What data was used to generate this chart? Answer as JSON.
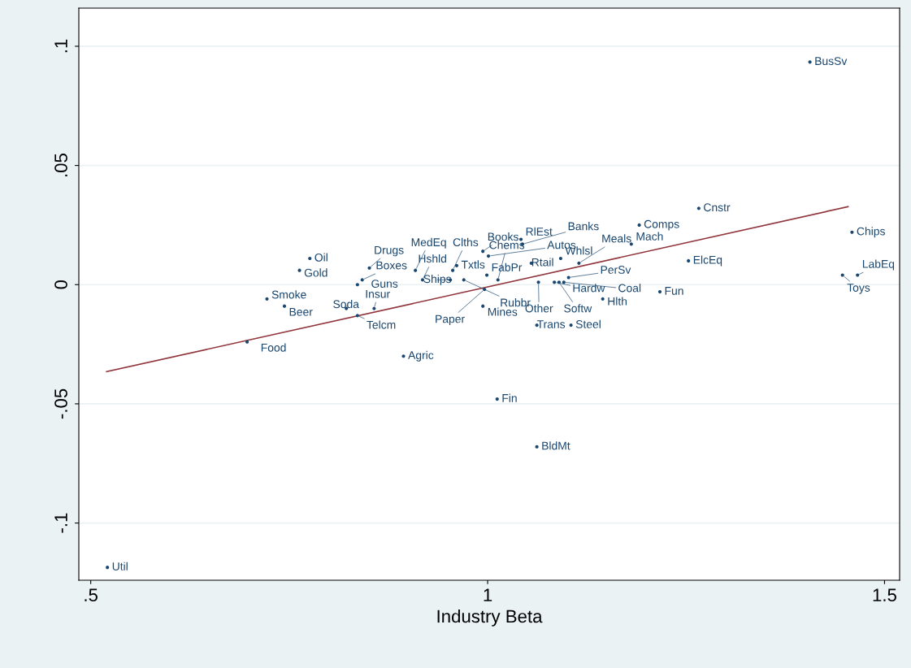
{
  "chart_data": {
    "type": "scatter",
    "xlabel": "Industry Beta",
    "xlim": [
      0.485,
      1.519
    ],
    "ylim": [
      -0.124,
      0.116
    ],
    "xticks": [
      {
        "value": 0.5,
        "label": ".5"
      },
      1,
      {
        "value": 1.5,
        "label": "1.5"
      }
    ],
    "yticks": [
      {
        "value": -0.1,
        "label": "-.1"
      },
      {
        "value": -0.05,
        "label": "-.05"
      },
      0,
      {
        "value": 0.05,
        "label": ".05"
      },
      {
        "value": 0.1,
        "label": ".1"
      }
    ],
    "grid": "y",
    "series": [
      {
        "color": "#1a476f",
        "marker": "circle",
        "x": [
          1.406,
          1.266,
          1.191,
          1.181,
          1.253,
          1.459,
          1.447,
          1.466,
          1.217,
          1.145,
          1.105,
          1.062,
          1.062,
          1.012,
          0.994,
          0.996,
          0.894,
          0.697,
          0.722,
          0.744,
          0.822,
          0.857,
          0.836,
          0.776,
          0.763,
          0.836,
          0.842,
          0.851,
          0.909,
          0.918,
          0.961,
          0.956,
          0.953,
          0.97,
          0.999,
          1.013,
          0.994,
          1.001,
          1.042,
          1.044,
          1.055,
          1.092,
          1.115,
          1.102,
          1.064,
          1.084,
          1.09,
          1.096,
          0.521
        ],
        "values": [
          0.0934,
          0.032,
          0.025,
          0.017,
          0.01,
          0.022,
          0.004,
          0.004,
          -0.003,
          -0.006,
          -0.017,
          -0.017,
          -0.068,
          -0.048,
          -0.009,
          -0.002,
          -0.03,
          -0.024,
          -0.006,
          -0.009,
          -0.01,
          -0.01,
          -0.013,
          0.011,
          0.006,
          0.0,
          0.002,
          0.007,
          0.006,
          0.002,
          0.008,
          0.006,
          0.002,
          0.002,
          0.004,
          0.002,
          0.014,
          0.012,
          0.019,
          0.017,
          0.009,
          0.011,
          0.009,
          0.003,
          0.001,
          0.001,
          0.001,
          0.001,
          -0.1186
        ]
      },
      {
        "type": "line",
        "marker": "none",
        "color": "#90353b",
        "line_style": "solid",
        "x": [
          0.52,
          1.454
        ],
        "values": [
          -0.0365,
          0.0327
        ]
      }
    ],
    "annotations": [
      {
        "text": "BusSv",
        "x": 1.406,
        "y": 0.0934
      },
      {
        "text": "Cnstr",
        "x": 1.266,
        "y": 0.032
      },
      {
        "text": "Comps",
        "x": 1.191,
        "y": 0.025
      },
      {
        "text": "Mach",
        "x": 1.181,
        "y": 0.017
      },
      {
        "text": "ElcEq",
        "x": 1.253,
        "y": 0.01
      },
      {
        "text": "Chips",
        "x": 1.459,
        "y": 0.022
      },
      {
        "text": "Toys",
        "x": 1.447,
        "y": 0.004
      },
      {
        "text": "LabEq",
        "x": 1.466,
        "y": 0.004
      },
      {
        "text": "Fun",
        "x": 1.217,
        "y": -0.003
      },
      {
        "text": "Hlth",
        "x": 1.145,
        "y": -0.006
      },
      {
        "text": "Steel",
        "x": 1.105,
        "y": -0.017
      },
      {
        "text": "Trans",
        "x": 1.062,
        "y": -0.017
      },
      {
        "text": "BldMt",
        "x": 1.062,
        "y": -0.068
      },
      {
        "text": "Fin",
        "x": 1.012,
        "y": -0.048
      },
      {
        "text": "Mines",
        "x": 0.994,
        "y": -0.009
      },
      {
        "text": "Paper",
        "x": 0.996,
        "y": -0.002
      },
      {
        "text": "Agric",
        "x": 0.894,
        "y": -0.03
      },
      {
        "text": "Food",
        "x": 0.697,
        "y": -0.024
      },
      {
        "text": "Smoke",
        "x": 0.722,
        "y": -0.006
      },
      {
        "text": "Beer",
        "x": 0.744,
        "y": -0.009
      },
      {
        "text": "Soda",
        "x": 0.822,
        "y": -0.01
      },
      {
        "text": "Insur",
        "x": 0.857,
        "y": -0.01
      },
      {
        "text": "Telcm",
        "x": 0.836,
        "y": -0.013
      },
      {
        "text": "Oil",
        "x": 0.776,
        "y": 0.011
      },
      {
        "text": "Gold",
        "x": 0.763,
        "y": 0.006
      },
      {
        "text": "Guns",
        "x": 0.836,
        "y": 0.0
      },
      {
        "text": "Boxes",
        "x": 0.842,
        "y": 0.002
      },
      {
        "text": "Drugs",
        "x": 0.851,
        "y": 0.007
      },
      {
        "text": "MedEq",
        "x": 0.909,
        "y": 0.006
      },
      {
        "text": "Hshld",
        "x": 0.918,
        "y": 0.002
      },
      {
        "text": "Txtls",
        "x": 0.961,
        "y": 0.008
      },
      {
        "text": "Clths",
        "x": 0.956,
        "y": 0.006
      },
      {
        "text": "Ships",
        "x": 0.953,
        "y": 0.002
      },
      {
        "text": "Rubbr",
        "x": 0.97,
        "y": 0.002
      },
      {
        "text": "FabPr",
        "x": 0.999,
        "y": 0.004
      },
      {
        "text": "Chems",
        "x": 1.013,
        "y": 0.002
      },
      {
        "text": "Books",
        "x": 0.994,
        "y": 0.014
      },
      {
        "text": "Autos",
        "x": 1.001,
        "y": 0.012
      },
      {
        "text": "RlEst",
        "x": 1.042,
        "y": 0.019
      },
      {
        "text": "Banks",
        "x": 1.044,
        "y": 0.017
      },
      {
        "text": "Rtail",
        "x": 1.055,
        "y": 0.009
      },
      {
        "text": "Whlsl",
        "x": 1.092,
        "y": 0.011
      },
      {
        "text": "Meals",
        "x": 1.115,
        "y": 0.009
      },
      {
        "text": "PerSv",
        "x": 1.102,
        "y": 0.003
      },
      {
        "text": "Other",
        "x": 1.064,
        "y": 0.001
      },
      {
        "text": "Hardw",
        "x": 1.084,
        "y": 0.001
      },
      {
        "text": "Softw",
        "x": 1.09,
        "y": 0.001
      },
      {
        "text": "Coal",
        "x": 1.096,
        "y": 0.001
      },
      {
        "text": "Util",
        "x": 0.521,
        "y": -0.1186
      }
    ]
  }
}
